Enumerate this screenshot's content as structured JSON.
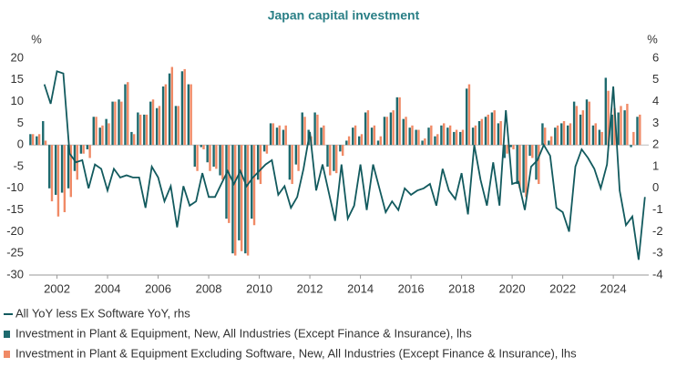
{
  "chart_data": {
    "type": "bar",
    "title": "Japan capital investment",
    "ylabel": "%",
    "y2label": "%",
    "x": [
      2001,
      2001.25,
      2001.5,
      2001.75,
      2002,
      2002.25,
      2002.5,
      2002.75,
      2003,
      2003.25,
      2003.5,
      2003.75,
      2004,
      2004.25,
      2004.5,
      2004.75,
      2005,
      2005.25,
      2005.5,
      2005.75,
      2006,
      2006.25,
      2006.5,
      2006.75,
      2007,
      2007.25,
      2007.5,
      2007.75,
      2008,
      2008.25,
      2008.5,
      2008.75,
      2009,
      2009.25,
      2009.5,
      2009.75,
      2010,
      2010.25,
      2010.5,
      2010.75,
      2011,
      2011.25,
      2011.5,
      2011.75,
      2012,
      2012.25,
      2012.5,
      2012.75,
      2013,
      2013.25,
      2013.5,
      2013.75,
      2014,
      2014.25,
      2014.5,
      2014.75,
      2015,
      2015.25,
      2015.5,
      2015.75,
      2016,
      2016.25,
      2016.5,
      2016.75,
      2017,
      2017.25,
      2017.5,
      2017.75,
      2018,
      2018.25,
      2018.5,
      2018.75,
      2019,
      2019.25,
      2019.5,
      2019.75,
      2020,
      2020.25,
      2020.5,
      2020.75,
      2021,
      2021.25,
      2021.5,
      2021.75,
      2022,
      2022.25,
      2022.5,
      2022.75,
      2023,
      2023.25,
      2023.5,
      2023.75,
      2024,
      2024.25,
      2024.5,
      2024.75,
      2025,
      2025.25
    ],
    "xlim": [
      2000.9,
      2025.4
    ],
    "xticks": [
      2002,
      2004,
      2006,
      2008,
      2010,
      2012,
      2014,
      2016,
      2018,
      2020,
      2022,
      2024
    ],
    "ylim": [
      -30,
      20
    ],
    "yticks": [
      -30,
      -25,
      -20,
      -15,
      -10,
      -5,
      0,
      5,
      10,
      15,
      20
    ],
    "y2lim": [
      -4,
      6
    ],
    "y2ticks": [
      -4,
      -3,
      -2,
      -1,
      0,
      1,
      2,
      3,
      4,
      5,
      6
    ],
    "series": [
      {
        "name": "All YoY less Ex Software YoY, rhs",
        "type": "line",
        "axis": "y2",
        "color": "#125a5e",
        "values": [
          null,
          null,
          4.8,
          3.9,
          5.4,
          5.3,
          1.6,
          1.2,
          1.3,
          0.0,
          1.1,
          0.9,
          -0.1,
          0.9,
          0.5,
          0.6,
          0.5,
          0.5,
          -0.9,
          1.0,
          0.5,
          -0.6,
          0.1,
          -1.8,
          0.1,
          -0.8,
          -0.6,
          0.7,
          -0.4,
          -0.4,
          0.2,
          0.8,
          0.2,
          0.8,
          0.1,
          0.5,
          0.8,
          1.1,
          1.3,
          -0.3,
          0.1,
          -0.9,
          -0.4,
          0.9,
          2.6,
          -0.1,
          1.1,
          -0.2,
          -1.5,
          1.1,
          -1.4,
          -0.8,
          1.1,
          -1.0,
          1.1,
          0.0,
          -1.1,
          -0.6,
          -1.0,
          0.0,
          -0.3,
          -0.1,
          0.0,
          0.2,
          -0.8,
          0.9,
          -0.1,
          -0.5,
          0.7,
          -1.2,
          2.0,
          0.4,
          -0.8,
          1.2,
          -0.8,
          3.6,
          0.2,
          0.3,
          -1.0,
          1.0,
          1.3,
          2.0,
          1.5,
          -0.9,
          -1.1,
          -2.0,
          1.0,
          1.8,
          1.4,
          0.9,
          0.0,
          1.1,
          4.7,
          -0.1,
          -1.7,
          -1.3,
          -3.3,
          -0.4
        ]
      },
      {
        "name": "Investment in Plant & Equipment, New, All Industries (Except Finance & Insurance), lhs",
        "type": "bar",
        "axis": "y",
        "color": "#1d6a6e",
        "values": [
          2.5,
          2,
          5.5,
          -10,
          -11.5,
          -11,
          -10,
          -6,
          -2,
          -1,
          6.5,
          4,
          6,
          10,
          10.5,
          14,
          3,
          7.5,
          7,
          10,
          8.5,
          13.5,
          16.5,
          9,
          17,
          14,
          -5,
          -0.5,
          -4,
          -5,
          -7,
          -17,
          -25,
          -22,
          -25,
          -17,
          -8,
          -1.5,
          5,
          4,
          3.5,
          -8,
          -4.5,
          7.5,
          3.5,
          7.5,
          4,
          -5,
          -6,
          -1.5,
          1,
          4,
          2,
          7.5,
          4,
          1,
          6.5,
          7.5,
          11,
          6,
          4,
          3.5,
          1,
          4,
          2,
          4.5,
          4,
          3,
          3,
          13,
          4,
          5.5,
          6.5,
          7.5,
          5,
          -3,
          -0.5,
          -9,
          -11,
          -2.5,
          -8,
          5,
          1,
          4,
          5,
          4.5,
          10,
          7,
          10.5,
          4.5,
          3.5,
          15.5,
          7,
          7.5,
          8,
          -0.5,
          6.5,
          null
        ]
      },
      {
        "name": "Investment in Plant & Equipment Excluding Software, New, All Industries (Except Finance & Insurance), lhs",
        "type": "bar",
        "axis": "y",
        "color": "#f08a66",
        "values": [
          2.5,
          2.5,
          1,
          -13,
          -16.5,
          -15.5,
          -12,
          -8,
          -2,
          -3,
          6.5,
          4.5,
          5,
          10,
          10,
          14.5,
          2.5,
          7,
          7,
          10.5,
          9,
          14,
          18,
          9,
          17.5,
          14,
          -6,
          -1,
          -6,
          -5.5,
          -8,
          -18,
          -25.5,
          -24.5,
          -25.5,
          -18.5,
          -9,
          -2,
          5,
          4.5,
          4.5,
          -9,
          -6,
          6.5,
          2,
          7,
          4.5,
          -7,
          -6.5,
          -2.5,
          2,
          4.5,
          2.5,
          8,
          4.5,
          2,
          6.5,
          8,
          11,
          6.5,
          4.5,
          3.5,
          1.5,
          4.5,
          2.5,
          5,
          4.5,
          3.5,
          3.5,
          14,
          4.5,
          6,
          7,
          8,
          5.5,
          -2,
          -1,
          -10,
          -12,
          -3,
          -9,
          4,
          2,
          4.5,
          5.5,
          5,
          9,
          8,
          10,
          5,
          3,
          12.5,
          8.5,
          9,
          9.5,
          3,
          7,
          null
        ]
      }
    ]
  }
}
